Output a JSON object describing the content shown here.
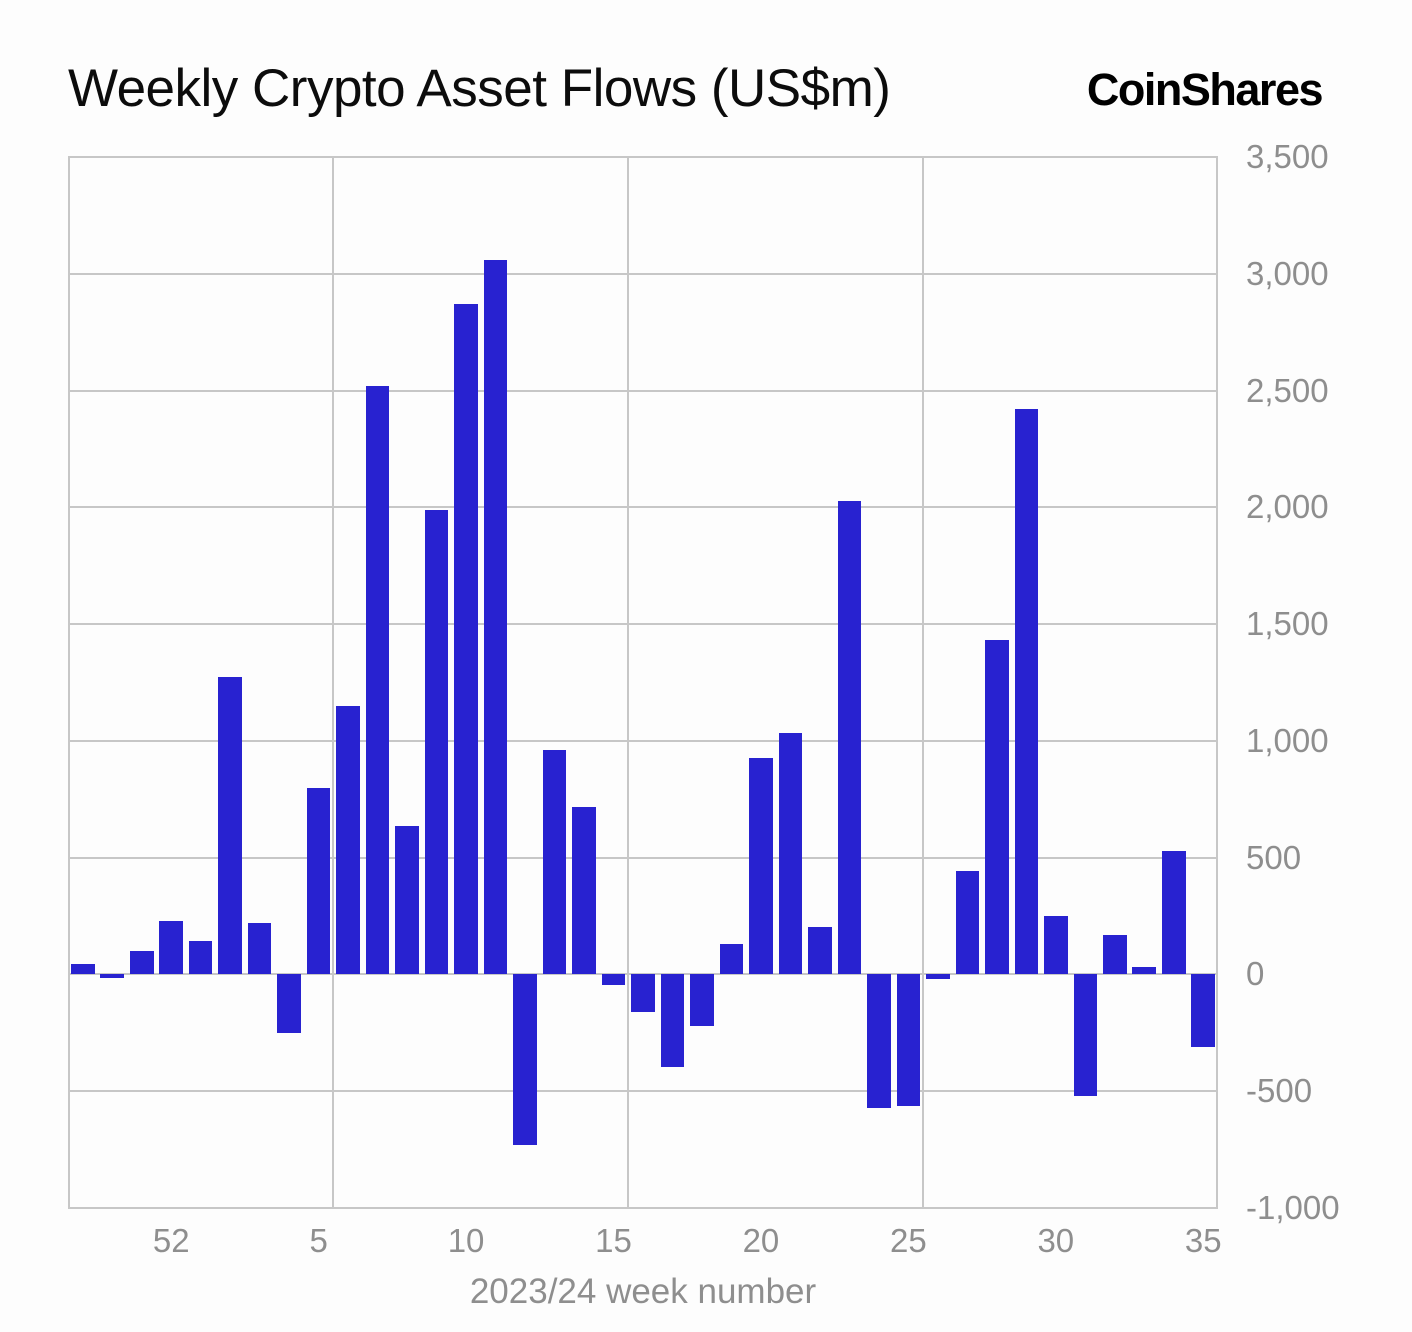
{
  "header": {
    "title": "Weekly Crypto Asset Flows (US$m)",
    "logo_text": "CoinShares"
  },
  "chart_data": {
    "type": "bar",
    "title": "Weekly Crypto Asset Flows (US$m)",
    "xlabel": "2023/24 week number",
    "ylabel": "",
    "x": [
      49,
      50,
      51,
      52,
      1,
      2,
      3,
      4,
      5,
      6,
      7,
      8,
      9,
      10,
      11,
      12,
      13,
      14,
      15,
      16,
      17,
      18,
      19,
      20,
      21,
      22,
      23,
      24,
      25,
      26,
      27,
      28,
      29,
      30,
      31,
      32,
      33,
      34,
      35
    ],
    "values": [
      45,
      -15,
      100,
      230,
      145,
      1275,
      220,
      -250,
      800,
      1150,
      2520,
      635,
      1990,
      2870,
      3060,
      -730,
      960,
      715,
      -45,
      -160,
      -395,
      -220,
      130,
      925,
      1035,
      205,
      2025,
      -570,
      -565,
      -20,
      445,
      1430,
      2420,
      250,
      -520,
      170,
      30,
      530,
      -310
    ],
    "ylim": [
      -1000,
      3500
    ],
    "ytick_values": [
      3500,
      3000,
      2500,
      2000,
      1500,
      1000,
      500,
      0,
      -500,
      -1000
    ],
    "ytick_labels": [
      "3,500",
      "3,000",
      "2,500",
      "2,000",
      "1,500",
      "1,000",
      "500",
      "0",
      "-500",
      "-1,000"
    ],
    "xticks": [
      {
        "index": 3,
        "label": "52"
      },
      {
        "index": 8,
        "label": "5"
      },
      {
        "index": 13,
        "label": "10"
      },
      {
        "index": 18,
        "label": "15"
      },
      {
        "index": 23,
        "label": "20"
      },
      {
        "index": 28,
        "label": "25"
      },
      {
        "index": 33,
        "label": "30"
      },
      {
        "index": 38,
        "label": "35"
      }
    ],
    "vgrid_slot_boundaries": [
      0,
      9,
      19,
      29,
      39
    ],
    "grid": true,
    "legend": "none",
    "bar_color": "#2822d0",
    "gridline_color": "#c7c7c7",
    "axis_text_color": "#8e8e8e",
    "background_color": "#fdfdfd"
  }
}
